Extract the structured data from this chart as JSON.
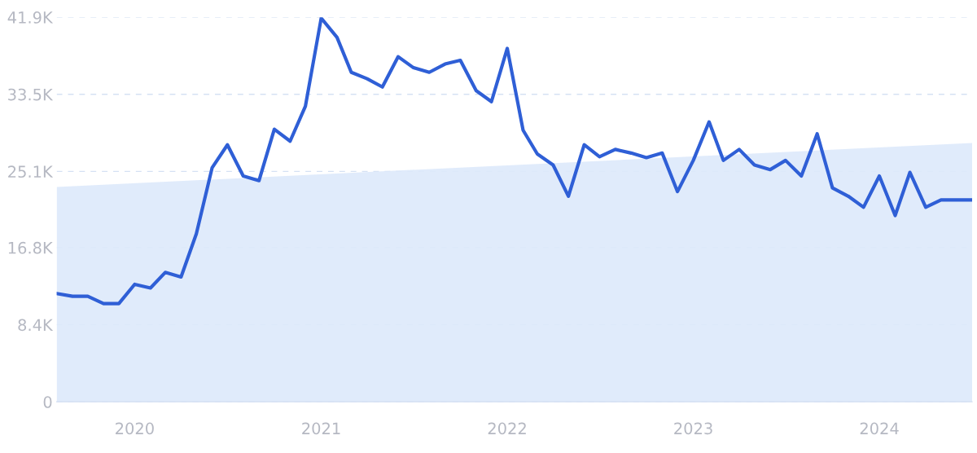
{
  "chart_data": {
    "type": "line",
    "x": [
      "2019-08",
      "2019-09",
      "2019-10",
      "2019-11",
      "2019-12",
      "2020-01",
      "2020-02",
      "2020-03",
      "2020-04",
      "2020-05",
      "2020-06",
      "2020-07",
      "2020-08",
      "2020-09",
      "2020-10",
      "2020-11",
      "2020-12",
      "2021-01",
      "2021-02",
      "2021-03",
      "2021-04",
      "2021-05",
      "2021-06",
      "2021-07",
      "2021-08",
      "2021-09",
      "2021-10",
      "2021-11",
      "2021-12",
      "2022-01",
      "2022-02",
      "2022-03",
      "2022-04",
      "2022-05",
      "2022-06",
      "2022-07",
      "2022-08",
      "2022-09",
      "2022-10",
      "2022-11",
      "2022-12",
      "2023-01",
      "2023-02",
      "2023-03",
      "2023-04",
      "2023-05",
      "2023-06",
      "2023-07",
      "2023-08",
      "2023-09",
      "2023-10",
      "2023-11",
      "2023-12",
      "2024-01",
      "2024-02",
      "2024-03",
      "2024-04",
      "2024-05",
      "2024-06",
      "2024-07"
    ],
    "series": [
      {
        "type": "area",
        "color": "#dde9fb",
        "x": [
          "2019-08",
          "2024-07"
        ],
        "values": [
          23400,
          28200
        ]
      },
      {
        "color": "#2f5fd6",
        "values": [
          11800,
          11500,
          11500,
          10700,
          10700,
          12800,
          12400,
          14100,
          13600,
          18300,
          25500,
          28000,
          24600,
          24100,
          29700,
          28400,
          32200,
          41800,
          39700,
          35900,
          35200,
          34300,
          37600,
          36400,
          35900,
          36800,
          37200,
          33900,
          32700,
          38500,
          29600,
          27000,
          25800,
          22400,
          28000,
          26700,
          27500,
          27100,
          26600,
          27100,
          22900,
          26300,
          30500,
          26300,
          27500,
          25800,
          25300,
          26300,
          24600,
          29200,
          23300,
          22400,
          21200,
          24600,
          20300,
          25000,
          21200,
          22000,
          22000,
          22000
        ]
      }
    ],
    "xlim": [
      "2019-08",
      "2024-07"
    ],
    "xticks": [
      "2020",
      "2021",
      "2022",
      "2023",
      "2024"
    ],
    "ylim": [
      0,
      41900
    ],
    "yticks": [
      0,
      {
        "value": 8400,
        "label": "8.4K"
      },
      {
        "value": 16800,
        "label": "16.8K"
      },
      {
        "value": 25100,
        "label": "25.1K"
      },
      {
        "value": 33500,
        "label": "33.5K"
      },
      {
        "value": 41900,
        "label": "41.9K"
      }
    ],
    "grid": "y",
    "marker": "none",
    "line_style": "solid"
  }
}
